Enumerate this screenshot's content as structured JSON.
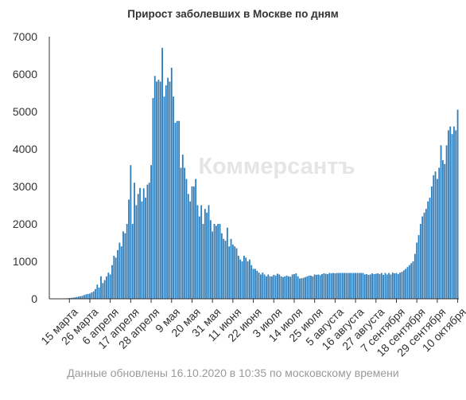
{
  "title": "Прирост заболевших в Москве по дням",
  "footer": "Данные обновлены 16.10.2020 в 10:35 по московскому времени",
  "watermark": "Коммерсантъ",
  "colors": {
    "bar": "#2f7ebc",
    "axis": "#333333",
    "grid": "#e6e6e6",
    "text": "#333333"
  },
  "chart_data": {
    "type": "bar",
    "title": "Прирост заболевших в Москве по дням",
    "xlabel": "",
    "ylabel": "",
    "ylim": [
      0,
      7000
    ],
    "yticks": [
      0,
      1000,
      2000,
      3000,
      4000,
      5000,
      6000,
      7000
    ],
    "grid": false,
    "legend": "none",
    "start_date": "2020-03-05",
    "tick_labels": [
      {
        "index": 10,
        "label": "15 марта"
      },
      {
        "index": 21,
        "label": "26 марта"
      },
      {
        "index": 32,
        "label": "6 апреля"
      },
      {
        "index": 43,
        "label": "17 апреля"
      },
      {
        "index": 54,
        "label": "28 апреля"
      },
      {
        "index": 65,
        "label": "9 мая"
      },
      {
        "index": 76,
        "label": "20 мая"
      },
      {
        "index": 87,
        "label": "31 мая"
      },
      {
        "index": 98,
        "label": "11 июня"
      },
      {
        "index": 109,
        "label": "22 июня"
      },
      {
        "index": 120,
        "label": "3 июля"
      },
      {
        "index": 131,
        "label": "14 июля"
      },
      {
        "index": 142,
        "label": "25 июля"
      },
      {
        "index": 153,
        "label": "5 августа"
      },
      {
        "index": 164,
        "label": "16 августа"
      },
      {
        "index": 175,
        "label": "27 августа"
      },
      {
        "index": 186,
        "label": "7 сентября"
      },
      {
        "index": 197,
        "label": "18 сентября"
      },
      {
        "index": 208,
        "label": "29 сентября"
      },
      {
        "index": 219,
        "label": "10 октября"
      }
    ],
    "values": [
      1,
      2,
      3,
      4,
      5,
      6,
      7,
      9,
      12,
      15,
      20,
      25,
      30,
      40,
      50,
      60,
      70,
      80,
      100,
      120,
      130,
      140,
      170,
      200,
      260,
      380,
      300,
      600,
      420,
      500,
      600,
      700,
      650,
      900,
      1150,
      1100,
      1300,
      1500,
      1400,
      1800,
      1750,
      2000,
      2650,
      3570,
      2000,
      3100,
      2500,
      2800,
      2960,
      2600,
      2950,
      2700,
      3050,
      3100,
      3570,
      5360,
      5950,
      5800,
      5850,
      5800,
      6700,
      5400,
      5700,
      5900,
      5800,
      6170,
      5400,
      4700,
      4750,
      4750,
      3500,
      3850,
      3500,
      3200,
      2800,
      2600,
      3000,
      3000,
      3200,
      2500,
      2200,
      2500,
      2000,
      2400,
      2300,
      2500,
      2100,
      1800,
      2000,
      1950,
      2000,
      2000,
      1750,
      1600,
      1550,
      1900,
      1400,
      1600,
      1450,
      1400,
      1350,
      1150,
      1050,
      1000,
      1150,
      1100,
      1000,
      1050,
      900,
      800,
      800,
      750,
      700,
      650,
      700,
      650,
      600,
      650,
      600,
      600,
      640,
      620,
      670,
      650,
      600,
      580,
      600,
      620,
      600,
      590,
      650,
      660,
      680,
      600,
      540,
      550,
      560,
      580,
      600,
      620,
      620,
      600,
      650,
      640,
      650,
      630,
      660,
      680,
      670,
      660,
      690,
      680,
      690,
      680,
      690,
      690,
      690,
      690,
      690,
      690,
      690,
      690,
      690,
      690,
      690,
      690,
      690,
      690,
      690,
      650,
      660,
      640,
      650,
      680,
      660,
      670,
      680,
      660,
      690,
      640,
      690,
      650,
      690,
      650,
      700,
      680,
      690,
      660,
      700,
      720,
      760,
      800,
      850,
      900,
      950,
      1000,
      1200,
      1500,
      1700,
      2000,
      2200,
      2300,
      2400,
      2600,
      2700,
      3000,
      3300,
      3400,
      3200,
      3500,
      4100,
      3700,
      3600,
      4100,
      4500,
      4600,
      4400,
      4600,
      4500,
      5050
    ]
  }
}
